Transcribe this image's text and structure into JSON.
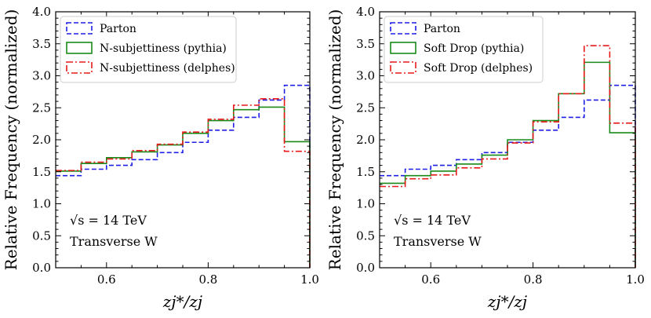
{
  "chart_data": [
    {
      "type": "step",
      "title": "",
      "xlabel": "z_{j*}/z_j",
      "ylabel": "Relative Frequency (normalized)",
      "xlim": [
        0.5,
        1.0
      ],
      "ylim": [
        0.0,
        4.0
      ],
      "xticks": [
        "0.6",
        "0.8",
        "1.0"
      ],
      "yticks": [
        "0.0",
        "0.5",
        "1.0",
        "1.5",
        "2.0",
        "2.5",
        "3.0",
        "3.5",
        "4.0"
      ],
      "bin_edges": [
        0.5,
        0.55,
        0.6,
        0.65,
        0.7,
        0.75,
        0.8,
        0.85,
        0.9,
        0.95,
        1.0
      ],
      "series": [
        {
          "name": "Parton",
          "color": "#1f1fe8",
          "style": "dashed",
          "values": [
            1.44,
            1.54,
            1.6,
            1.69,
            1.8,
            1.96,
            2.15,
            2.35,
            2.62,
            2.85
          ]
        },
        {
          "name": "N-subjettiness (pythia)",
          "color": "#1a8a1a",
          "style": "solid",
          "values": [
            1.51,
            1.63,
            1.72,
            1.81,
            1.92,
            2.1,
            2.3,
            2.47,
            2.51,
            1.97
          ]
        },
        {
          "name": "N-subjettiness (delphes)",
          "color": "#e81a1a",
          "style": "dashdot",
          "values": [
            1.52,
            1.65,
            1.7,
            1.83,
            1.93,
            2.12,
            2.32,
            2.54,
            2.64,
            1.82
          ]
        }
      ],
      "legend_position": "top-left",
      "annotations": [
        "√s = 14 TeV",
        "Transverse W"
      ]
    },
    {
      "type": "step",
      "title": "",
      "xlabel": "z_{j*}/z_j",
      "ylabel": "Relative Frequency (normalized)",
      "xlim": [
        0.5,
        1.0
      ],
      "ylim": [
        0.0,
        4.0
      ],
      "xticks": [
        "0.6",
        "0.8",
        "1.0"
      ],
      "yticks": [
        "0.0",
        "0.5",
        "1.0",
        "1.5",
        "2.0",
        "2.5",
        "3.0",
        "3.5",
        "4.0"
      ],
      "bin_edges": [
        0.5,
        0.55,
        0.6,
        0.65,
        0.7,
        0.75,
        0.8,
        0.85,
        0.9,
        0.95,
        1.0
      ],
      "series": [
        {
          "name": "Parton",
          "color": "#1f1fe8",
          "style": "dashed",
          "values": [
            1.44,
            1.54,
            1.6,
            1.69,
            1.8,
            1.96,
            2.15,
            2.35,
            2.62,
            2.85
          ]
        },
        {
          "name": "Soft Drop (pythia)",
          "color": "#1a8a1a",
          "style": "solid",
          "values": [
            1.32,
            1.44,
            1.51,
            1.62,
            1.76,
            2.0,
            2.3,
            2.72,
            3.21,
            2.11
          ]
        },
        {
          "name": "Soft Drop (delphes)",
          "color": "#e81a1a",
          "style": "dashdot",
          "values": [
            1.27,
            1.39,
            1.45,
            1.56,
            1.7,
            1.95,
            2.28,
            2.72,
            3.47,
            2.26
          ]
        }
      ],
      "legend_position": "top-left",
      "annotations": [
        "√s = 14 TeV",
        "Transverse W"
      ]
    }
  ]
}
